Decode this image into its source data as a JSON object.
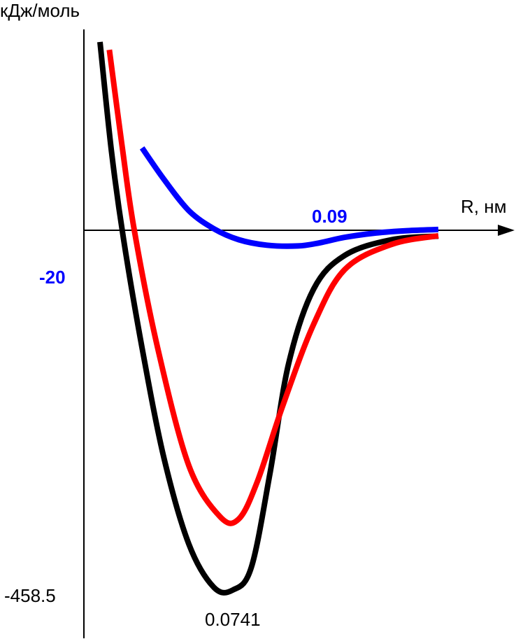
{
  "chart_data": {
    "type": "line",
    "title": "",
    "xlabel": "R, нм",
    "ylabel": "кДж/моль",
    "grid": false,
    "legend": "none",
    "annotations": {
      "blue_min_r": "0.09",
      "blue_min_e": "-20",
      "black_min_e": "-458.5",
      "black_min_r": "0.0741"
    },
    "series": [
      {
        "color": "#000000",
        "curve_points": [
          [
            0.0315,
            240
          ],
          [
            0.0352,
            100
          ],
          [
            0.039,
            -10
          ],
          [
            0.045,
            -150
          ],
          [
            0.052,
            -290
          ],
          [
            0.06,
            -400
          ],
          [
            0.068,
            -455
          ],
          [
            0.0741,
            -458.5
          ],
          [
            0.08,
            -430
          ],
          [
            0.086,
            -310
          ],
          [
            0.092,
            -170
          ],
          [
            0.1,
            -75
          ],
          [
            0.11,
            -32
          ],
          [
            0.125,
            -12
          ],
          [
            0.14,
            -7.5
          ]
        ]
      },
      {
        "color": "#ff0000",
        "curve_points": [
          [
            0.0345,
            230
          ],
          [
            0.0385,
            110
          ],
          [
            0.0425,
            0
          ],
          [
            0.05,
            -150
          ],
          [
            0.06,
            -300
          ],
          [
            0.07,
            -365
          ],
          [
            0.076,
            -368
          ],
          [
            0.082,
            -320
          ],
          [
            0.09,
            -225
          ],
          [
            0.1,
            -120
          ],
          [
            0.11,
            -50
          ],
          [
            0.125,
            -18
          ],
          [
            0.14,
            -7
          ]
        ]
      },
      {
        "color": "#0000ff",
        "curve_points": [
          [
            0.045,
            105
          ],
          [
            0.052,
            65
          ],
          [
            0.06,
            25
          ],
          [
            0.068,
            2
          ],
          [
            0.076,
            -12
          ],
          [
            0.085,
            -19
          ],
          [
            0.095,
            -20
          ],
          [
            0.102,
            -16
          ],
          [
            0.11,
            -9
          ],
          [
            0.12,
            -3.5
          ],
          [
            0.13,
            -0.5
          ],
          [
            0.14,
            1
          ]
        ]
      }
    ]
  }
}
